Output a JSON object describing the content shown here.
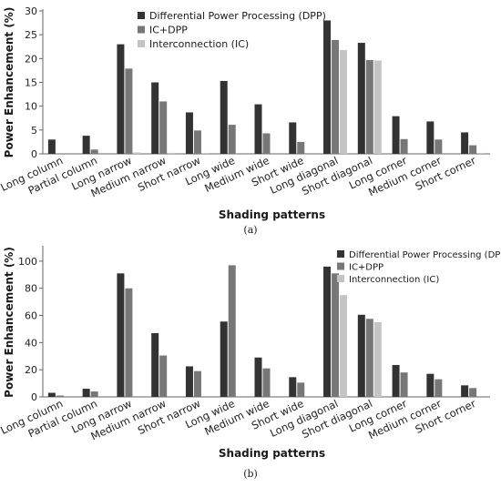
{
  "colors": {
    "dpp": "#333333",
    "icdpp": "#777777",
    "ic": "#c4c4c4",
    "axis": "#666666"
  },
  "captions": {
    "a": "(a)",
    "b": "(b)"
  },
  "chart_data": [
    {
      "type": "bar",
      "ylabel": "Power Enhancement (%)",
      "xlabel": "Shading patterns",
      "ylim": [
        0,
        30
      ],
      "yticks": [
        0,
        5,
        10,
        15,
        20,
        25,
        30
      ],
      "legend_position": "top-center",
      "categories": [
        "Long column",
        "Partial column",
        "Long narrow",
        "Medium narrow",
        "Short narrow",
        "Long wide",
        "Medium wide",
        "Short wide",
        "Long diagonal",
        "Short diagonal",
        "Long corner",
        "Medium corner",
        "Short corner"
      ],
      "series": [
        {
          "name": "Differential Power Processing (DPP)",
          "values": [
            3,
            3.8,
            23,
            15,
            8.7,
            15.3,
            10.4,
            6.6,
            28,
            23.3,
            7.9,
            6.8,
            4.5
          ]
        },
        {
          "name": "IC+DPP",
          "values": [
            0,
            0.9,
            17.9,
            11,
            4.9,
            6.1,
            4.3,
            2.5,
            23.9,
            19.7,
            3.1,
            3,
            1.8
          ]
        },
        {
          "name": "Interconnection (IC)",
          "values": [
            0,
            0,
            0.3,
            0.2,
            0.2,
            0,
            0,
            0,
            21.8,
            19.6,
            0,
            0,
            0.2
          ]
        }
      ]
    },
    {
      "type": "bar",
      "ylabel": "Power Enhancement (%)",
      "xlabel": "Shading patterns",
      "ylim": [
        0,
        110
      ],
      "yticks": [
        0,
        20,
        40,
        60,
        80,
        100
      ],
      "legend_position": "top-right",
      "categories": [
        "Long column",
        "Partial column",
        "Long narrow",
        "Medium narrow",
        "Short narrow",
        "Long wide",
        "Medium wide",
        "Short wide",
        "Long diagonal",
        "Short diagonal",
        "Long corner",
        "Medium corner",
        "Short corner"
      ],
      "series": [
        {
          "name": "Differential Power Processing (DPP)",
          "values": [
            3,
            6,
            91,
            47,
            22.5,
            55.5,
            29,
            14.5,
            96,
            60.5,
            23.5,
            17,
            8.5
          ]
        },
        {
          "name": "IC+DPP",
          "values": [
            1,
            4,
            80,
            30.5,
            19,
            97,
            21,
            10.5,
            91,
            57.5,
            18,
            13,
            6.5
          ]
        },
        {
          "name": "Interconnection (IC)",
          "values": [
            0,
            0,
            0,
            0,
            0,
            0,
            0,
            0,
            75,
            55,
            0,
            0,
            0
          ]
        }
      ]
    }
  ]
}
